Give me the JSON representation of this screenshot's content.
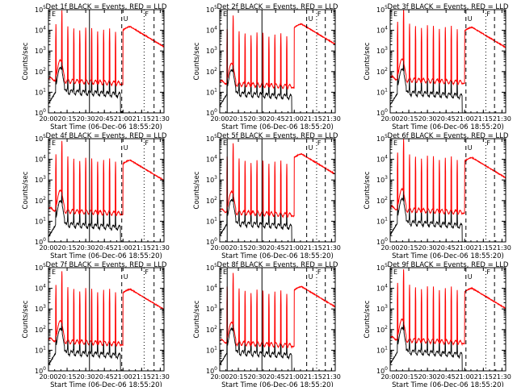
{
  "chart_data": {
    "type": "line",
    "x_unit": "minutes since 20:00",
    "shared": {
      "xlabel": "Start Time (06-Dec-06 18:55:20)",
      "ylabel": "Counts/sec",
      "xtick_labels": [
        "20:00",
        "20:15",
        "20:30",
        "20:45",
        "21:00",
        "21:15",
        "21:30"
      ],
      "xtick_values": [
        0,
        15,
        30,
        45,
        60,
        75,
        90
      ],
      "xlim": [
        0,
        93
      ],
      "ylog": true,
      "ylim": [
        1,
        100000
      ],
      "ytick_labels": [
        "10^0",
        "10^1",
        "10^2",
        "10^3",
        "10^4",
        "10^5"
      ],
      "legend_text": "BLACK = Events, RED = LLD",
      "marker_labels": [
        "U",
        "F",
        "E"
      ],
      "series": [
        {
          "color": "#000000"
        },
        {
          "color": "#ff0000"
        }
      ]
    },
    "panels": [
      {
        "title": "Det 1f BLACK = Events, RED = LLD",
        "det": "1f",
        "solid_lines": [
          0,
          33
        ],
        "dashed": [
          59,
          85
        ],
        "dotted": [
          77
        ],
        "red_base": 40,
        "black_base": 14,
        "peak": 15000,
        "spike_height": 12
      },
      {
        "title": "Det 2f BLACK = Events, RED = LLD",
        "det": "2f",
        "solid_lines": [
          6,
          34
        ],
        "dashed": [
          70,
          85
        ],
        "dotted": [
          78
        ],
        "red_base": 28,
        "black_base": 11,
        "peak": 20000,
        "spike_height": 10
      },
      {
        "title": "Det 3f BLACK = Events, RED = LLD",
        "det": "3f",
        "solid_lines": [],
        "dashed": [
          61,
          84
        ],
        "dotted": [
          77
        ],
        "red_base": 45,
        "black_base": 12,
        "peak": 14000,
        "spike_height": 14
      },
      {
        "title": "Det 4f BLACK = Events, RED = LLD",
        "det": "4f",
        "solid_lines": [
          0,
          33
        ],
        "dashed": [
          59,
          85
        ],
        "dotted": [
          77
        ],
        "red_base": 35,
        "black_base": 9,
        "peak": 9000,
        "spike_height": 12
      },
      {
        "title": "Det 5f BLACK = Events, RED = LLD",
        "det": "5f",
        "solid_lines": [
          6,
          34
        ],
        "dashed": [
          70,
          85
        ],
        "dotted": [
          78
        ],
        "red_base": 30,
        "black_base": 10,
        "peak": 18000,
        "spike_height": 11
      },
      {
        "title": "Det 6f BLACK = Events, RED = LLD",
        "det": "6f",
        "solid_lines": [],
        "dashed": [
          61,
          84
        ],
        "dotted": [
          77
        ],
        "red_base": 40,
        "black_base": 11,
        "peak": 12000,
        "spike_height": 13
      },
      {
        "title": "Det 7f BLACK = Events, RED = LLD",
        "det": "7f",
        "solid_lines": [
          0,
          33
        ],
        "dashed": [
          59,
          85
        ],
        "dotted": [
          77
        ],
        "red_base": 30,
        "black_base": 10,
        "peak": 9000,
        "spike_height": 12
      },
      {
        "title": "Det 8f BLACK = Events, RED = LLD",
        "det": "8f",
        "solid_lines": [
          6,
          34
        ],
        "dashed": [
          70,
          85
        ],
        "dotted": [
          78
        ],
        "red_base": 25,
        "black_base": 10,
        "peak": 12000,
        "spike_height": 12
      },
      {
        "title": "Det 9f BLACK = Events, RED = LLD",
        "det": "9f",
        "solid_lines": [],
        "dashed": [
          61,
          84
        ],
        "dotted": [
          77
        ],
        "red_base": 35,
        "black_base": 11,
        "peak": 10000,
        "spike_height": 13
      }
    ]
  }
}
